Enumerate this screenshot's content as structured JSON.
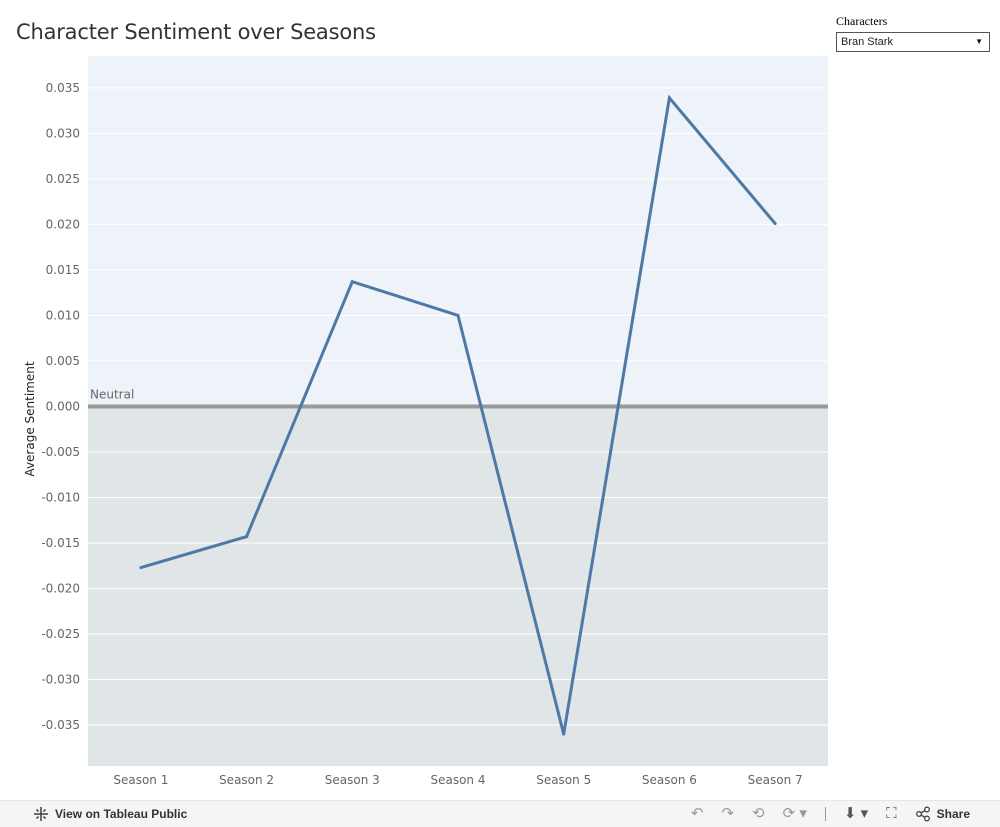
{
  "title": "Character Sentiment over Seasons",
  "filter": {
    "label": "Characters",
    "selected": "Bran Stark"
  },
  "toolbar": {
    "view_label": "View on Tableau Public",
    "share_label": "Share"
  },
  "colors": {
    "line": "#4e79a7",
    "positive_band": "#eef2f9",
    "negative_band": "#e0e6e8",
    "neutral_line": "#999999"
  },
  "chart_data": {
    "type": "line",
    "title": "Character Sentiment over Seasons",
    "xlabel": "",
    "ylabel": "Average Sentiment",
    "categories": [
      "Season 1",
      "Season 2",
      "Season 3",
      "Season 4",
      "Season 5",
      "Season 6",
      "Season 7"
    ],
    "series": [
      {
        "values": [
          -0.0177,
          -0.0143,
          0.0137,
          0.01,
          -0.036,
          0.0339,
          0.0201
        ]
      }
    ],
    "ylim": [
      -0.0395,
      0.0385
    ],
    "yticks": [
      "0.035",
      "0.030",
      "0.025",
      "0.020",
      "0.015",
      "0.010",
      "0.005",
      "0.000",
      "-0.005",
      "-0.010",
      "-0.015",
      "-0.020",
      "-0.025",
      "-0.030",
      "-0.035"
    ],
    "reference_line": {
      "value": 0,
      "label": "Neutral"
    },
    "grid": true,
    "legend": "none"
  }
}
